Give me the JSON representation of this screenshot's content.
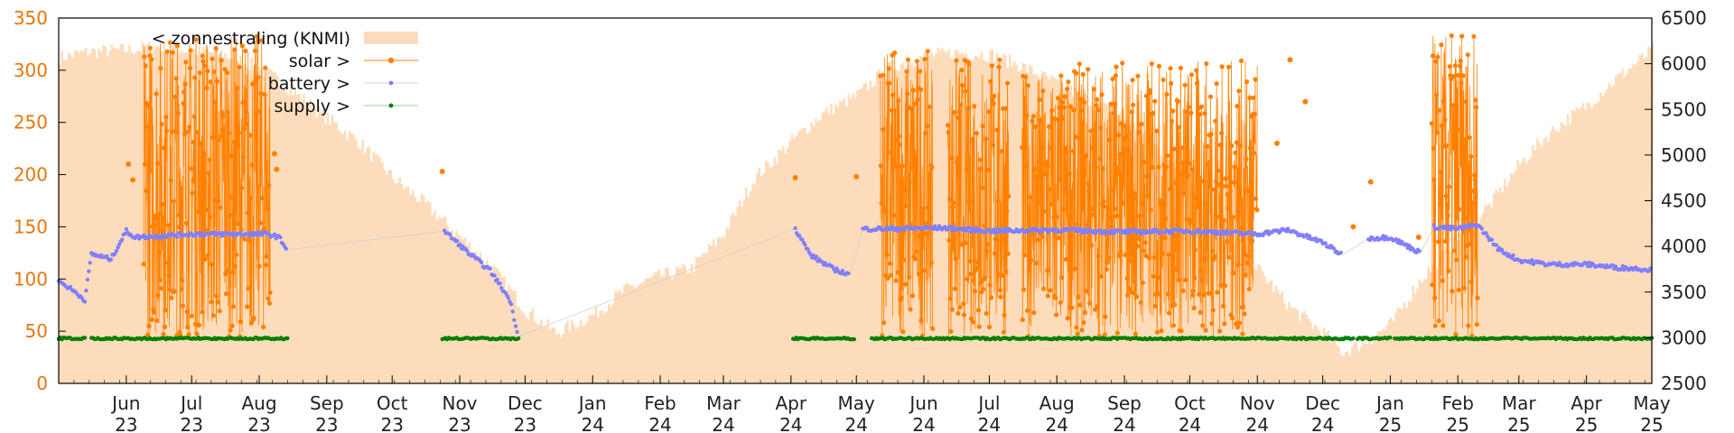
{
  "chart_data": {
    "type": "line",
    "title": "",
    "xlabel": "",
    "ylabel": "",
    "y2label": "",
    "x": [
      "2023-05-01",
      "2025-05-01"
    ],
    "xticks": [
      {
        "date": "2023-06-01",
        "month": "Jun",
        "year": "23"
      },
      {
        "date": "2023-07-01",
        "month": "Jul",
        "year": "23"
      },
      {
        "date": "2023-08-01",
        "month": "Aug",
        "year": "23"
      },
      {
        "date": "2023-09-01",
        "month": "Sep",
        "year": "23"
      },
      {
        "date": "2023-10-01",
        "month": "Oct",
        "year": "23"
      },
      {
        "date": "2023-11-01",
        "month": "Nov",
        "year": "23"
      },
      {
        "date": "2023-12-01",
        "month": "Dec",
        "year": "23"
      },
      {
        "date": "2024-01-01",
        "month": "Jan",
        "year": "24"
      },
      {
        "date": "2024-02-01",
        "month": "Feb",
        "year": "24"
      },
      {
        "date": "2024-03-01",
        "month": "Mar",
        "year": "24"
      },
      {
        "date": "2024-04-01",
        "month": "Apr",
        "year": "24"
      },
      {
        "date": "2024-05-01",
        "month": "May",
        "year": "24"
      },
      {
        "date": "2024-06-01",
        "month": "Jun",
        "year": "24"
      },
      {
        "date": "2024-07-01",
        "month": "Jul",
        "year": "24"
      },
      {
        "date": "2024-08-01",
        "month": "Aug",
        "year": "24"
      },
      {
        "date": "2024-09-01",
        "month": "Sep",
        "year": "24"
      },
      {
        "date": "2024-10-01",
        "month": "Oct",
        "year": "24"
      },
      {
        "date": "2024-11-01",
        "month": "Nov",
        "year": "24"
      },
      {
        "date": "2024-12-01",
        "month": "Dec",
        "year": "24"
      },
      {
        "date": "2025-01-01",
        "month": "Jan",
        "year": "25"
      },
      {
        "date": "2025-02-01",
        "month": "Feb",
        "year": "25"
      },
      {
        "date": "2025-03-01",
        "month": "Mar",
        "year": "25"
      },
      {
        "date": "2025-04-01",
        "month": "Apr",
        "year": "25"
      },
      {
        "date": "2025-05-01",
        "month": "May",
        "year": "25"
      }
    ],
    "ylim": [
      0,
      350
    ],
    "yticks": [
      0,
      50,
      100,
      150,
      200,
      250,
      300,
      350
    ],
    "y2lim": [
      2500,
      6500
    ],
    "y2ticks": [
      2500,
      3000,
      3500,
      4000,
      4500,
      5000,
      5500,
      6000,
      6500
    ],
    "grid": false,
    "legend_position": "top-left",
    "series": [
      {
        "name": "< zonnestraling (KNMI)",
        "type": "area",
        "axis": "right",
        "color": "#fddcbb",
        "points": [
          [
            "2023-05-01",
            6070
          ],
          [
            "2023-05-15",
            6130
          ],
          [
            "2023-06-01",
            6150
          ],
          [
            "2023-06-15",
            6190
          ],
          [
            "2023-07-01",
            6140
          ],
          [
            "2023-07-15",
            6110
          ],
          [
            "2023-08-01",
            5950
          ],
          [
            "2023-08-15",
            5720
          ],
          [
            "2023-09-01",
            5400
          ],
          [
            "2023-09-15",
            5150
          ],
          [
            "2023-10-01",
            4750
          ],
          [
            "2023-10-15",
            4480
          ],
          [
            "2023-11-01",
            4100
          ],
          [
            "2023-11-15",
            3780
          ],
          [
            "2023-12-01",
            3300
          ],
          [
            "2023-12-15",
            3050
          ],
          [
            "2024-01-01",
            3250
          ],
          [
            "2024-01-15",
            3520
          ],
          [
            "2024-02-01",
            3680
          ],
          [
            "2024-02-15",
            3760
          ],
          [
            "2024-03-01",
            4150
          ],
          [
            "2024-03-15",
            4750
          ],
          [
            "2024-04-01",
            5150
          ],
          [
            "2024-04-15",
            5450
          ],
          [
            "2024-05-01",
            5650
          ],
          [
            "2024-05-15",
            5950
          ],
          [
            "2024-06-01",
            6080
          ],
          [
            "2024-06-15",
            6120
          ],
          [
            "2024-07-01",
            6100
          ],
          [
            "2024-07-15",
            5980
          ],
          [
            "2024-08-01",
            5780
          ],
          [
            "2024-08-15",
            5600
          ],
          [
            "2024-09-01",
            5400
          ],
          [
            "2024-09-15",
            5100
          ],
          [
            "2024-10-01",
            4700
          ],
          [
            "2024-10-15",
            4300
          ],
          [
            "2024-11-01",
            3750
          ],
          [
            "2024-11-15",
            3350
          ],
          [
            "2024-12-01",
            3050
          ],
          [
            "2024-12-10",
            2840
          ],
          [
            "2024-12-20",
            2950
          ],
          [
            "2025-01-01",
            3150
          ],
          [
            "2025-01-15",
            3650
          ],
          [
            "2025-02-01",
            4100
          ],
          [
            "2025-02-15",
            4450
          ],
          [
            "2025-03-01",
            4900
          ],
          [
            "2025-03-15",
            5250
          ],
          [
            "2025-04-01",
            5550
          ],
          [
            "2025-04-15",
            5850
          ],
          [
            "2025-05-01",
            6150
          ]
        ]
      },
      {
        "name": "solar >",
        "type": "line+points",
        "axis": "left",
        "color": "#ff8000",
        "segments": [
          {
            "start": "2023-06-09",
            "end": "2023-08-06",
            "low": 45,
            "high": 335
          },
          {
            "start": "2024-05-12",
            "end": "2024-06-05",
            "low": 45,
            "high": 320
          },
          {
            "start": "2024-06-12",
            "end": "2024-07-10",
            "low": 45,
            "high": 315
          },
          {
            "start": "2024-07-16",
            "end": "2024-08-10",
            "low": 45,
            "high": 300
          },
          {
            "start": "2024-08-10",
            "end": "2024-10-05",
            "low": 45,
            "high": 310
          },
          {
            "start": "2024-10-05",
            "end": "2024-11-01",
            "low": 45,
            "high": 310
          },
          {
            "start": "2025-01-20",
            "end": "2025-02-10",
            "low": 45,
            "high": 335
          }
        ],
        "points": [
          [
            "2023-06-02",
            210
          ],
          [
            "2023-06-04",
            195
          ],
          [
            "2023-08-08",
            220
          ],
          [
            "2023-08-09",
            205
          ],
          [
            "2023-10-24",
            203
          ],
          [
            "2024-04-03",
            197
          ],
          [
            "2024-05-01",
            198
          ],
          [
            "2024-11-06",
            145
          ],
          [
            "2024-11-10",
            230
          ],
          [
            "2024-11-16",
            310
          ],
          [
            "2024-11-23",
            270
          ],
          [
            "2024-12-15",
            150
          ],
          [
            "2024-12-23",
            193
          ],
          [
            "2025-01-10",
            130
          ],
          [
            "2025-01-14",
            140
          ]
        ]
      },
      {
        "name": "battery >",
        "type": "points",
        "axis": "left",
        "color": "#8080ff",
        "points": [
          [
            "2023-05-01",
            98
          ],
          [
            "2023-05-07",
            90
          ],
          [
            "2023-05-13",
            80
          ],
          [
            "2023-05-16",
            124
          ],
          [
            "2023-05-25",
            119
          ],
          [
            "2023-06-01",
            146
          ],
          [
            "2023-06-05",
            140
          ],
          [
            "2023-07-01",
            143
          ],
          [
            "2023-08-05",
            143
          ],
          [
            "2023-08-10",
            140
          ],
          [
            "2023-08-14",
            128
          ],
          [
            "2023-10-25",
            146
          ],
          [
            "2023-11-05",
            125
          ],
          [
            "2023-11-15",
            108
          ],
          [
            "2023-11-24",
            80
          ],
          [
            "2023-11-28",
            45
          ],
          [
            "2024-04-03",
            148
          ],
          [
            "2024-04-10",
            123
          ],
          [
            "2024-04-20",
            110
          ],
          [
            "2024-04-28",
            104
          ],
          [
            "2024-05-04",
            148
          ],
          [
            "2024-05-15",
            148
          ],
          [
            "2024-06-10",
            149
          ],
          [
            "2024-07-01",
            146
          ],
          [
            "2024-08-01",
            147
          ],
          [
            "2024-09-01",
            145
          ],
          [
            "2024-10-01",
            146
          ],
          [
            "2024-11-01",
            143
          ],
          [
            "2024-11-15",
            147
          ],
          [
            "2024-12-01",
            135
          ],
          [
            "2024-12-10",
            123
          ],
          [
            "2024-12-22",
            139
          ],
          [
            "2025-01-01",
            140
          ],
          [
            "2025-01-15",
            125
          ],
          [
            "2025-01-21",
            150
          ],
          [
            "2025-02-01",
            148
          ],
          [
            "2025-02-10",
            152
          ],
          [
            "2025-02-20",
            128
          ],
          [
            "2025-03-01",
            118
          ],
          [
            "2025-03-15",
            114
          ],
          [
            "2025-04-01",
            114
          ],
          [
            "2025-04-15",
            111
          ],
          [
            "2025-05-01",
            109
          ]
        ]
      },
      {
        "name": "supply >",
        "type": "points",
        "axis": "left",
        "color": "#008000",
        "points": [
          [
            "2023-05-01",
            43
          ],
          [
            "2023-05-13",
            43
          ],
          [
            "2023-05-16",
            43
          ],
          [
            "2023-08-14",
            43
          ],
          [
            "2023-10-24",
            43
          ],
          [
            "2023-11-28",
            43
          ],
          [
            "2024-04-02",
            43
          ],
          [
            "2024-04-30",
            43
          ],
          [
            "2024-05-08",
            43
          ],
          [
            "2024-12-15",
            43
          ],
          [
            "2024-12-17",
            43
          ],
          [
            "2025-01-01",
            43
          ],
          [
            "2025-01-03",
            43
          ],
          [
            "2025-05-01",
            43
          ]
        ]
      }
    ]
  }
}
